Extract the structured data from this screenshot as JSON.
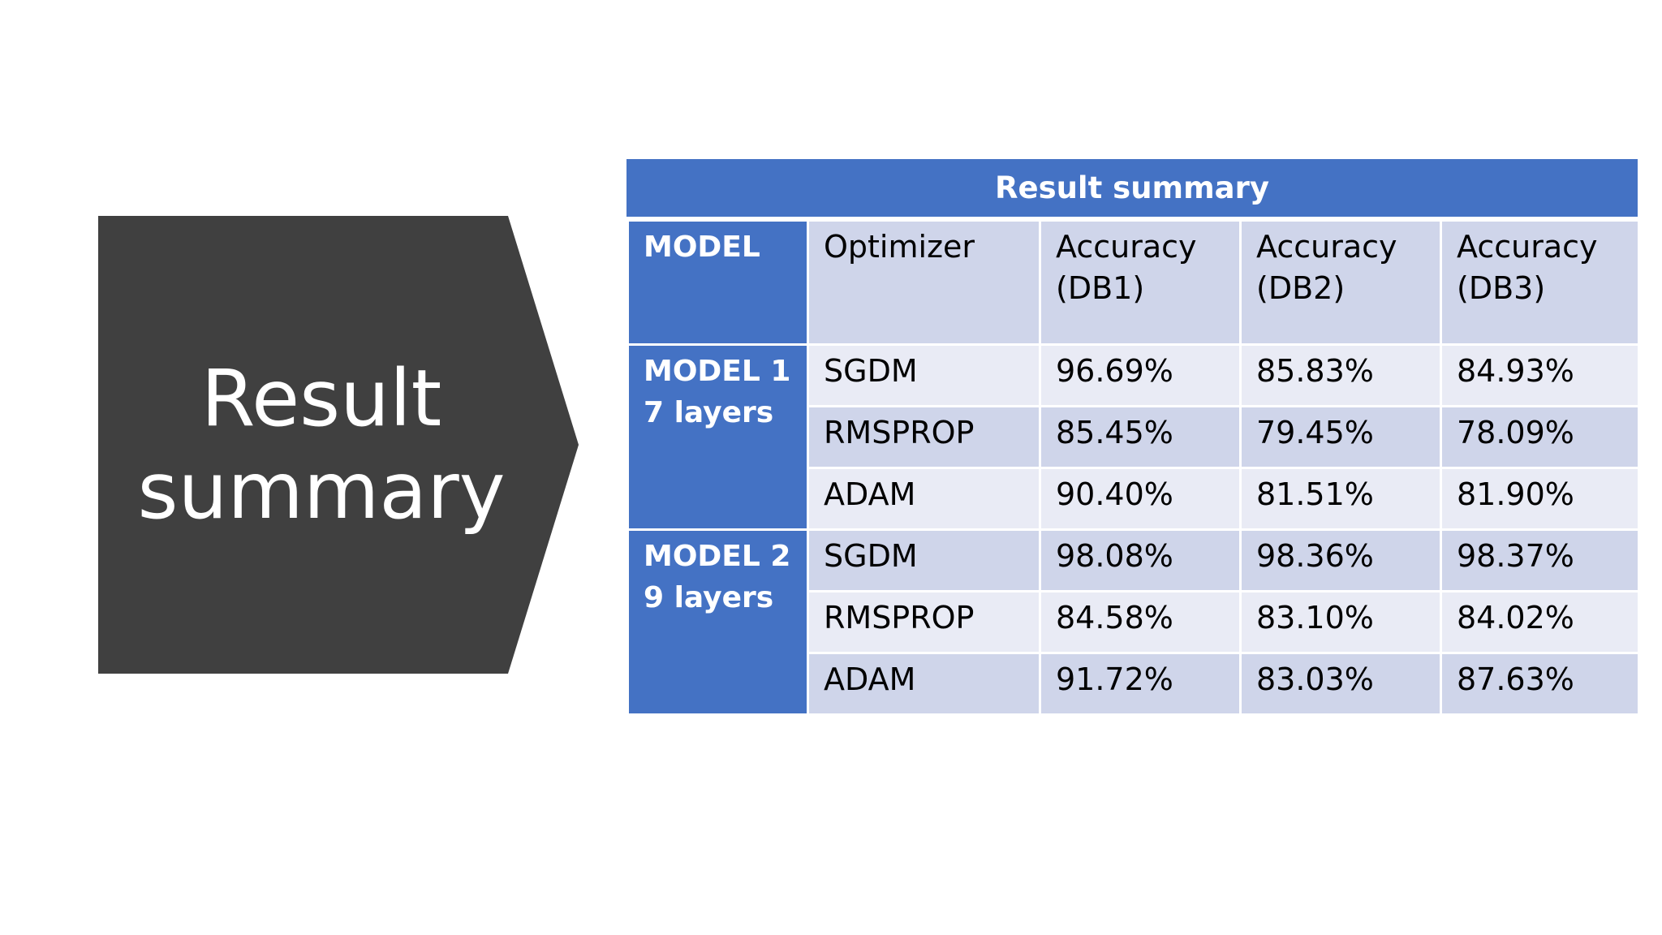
{
  "slide": {
    "title": "Result\nsummary"
  },
  "table": {
    "caption": "Result summary",
    "headers": {
      "model": "MODEL",
      "optimizer": "Optimizer",
      "db1_line1": "Accuracy",
      "db1_line2": "(DB1)",
      "db2_line1": "Accuracy",
      "db2_line2": "(DB2)",
      "db3_line1": "Accuracy",
      "db3_line2": "(DB3)"
    },
    "groups": [
      {
        "model_line1": "MODEL 1",
        "model_line2": "7 layers",
        "rows": [
          {
            "optimizer": "SGDM",
            "db1": "96.69%",
            "db2": "85.83%",
            "db3": "84.93%"
          },
          {
            "optimizer": "RMSPROP",
            "db1": "85.45%",
            "db2": "79.45%",
            "db3": "78.09%"
          },
          {
            "optimizer": "ADAM",
            "db1": "90.40%",
            "db2": "81.51%",
            "db3": "81.90%"
          }
        ]
      },
      {
        "model_line1": "MODEL 2",
        "model_line2": "9 layers",
        "rows": [
          {
            "optimizer": "SGDM",
            "db1": "98.08%",
            "db2": "98.36%",
            "db3": "98.37%"
          },
          {
            "optimizer": "RMSPROP",
            "db1": "84.58%",
            "db2": "83.10%",
            "db3": "84.02%"
          },
          {
            "optimizer": "ADAM",
            "db1": "91.72%",
            "db2": "83.03%",
            "db3": "87.63%"
          }
        ]
      }
    ]
  },
  "colors": {
    "chevron": "#404040",
    "header_blue": "#4472c4",
    "row_dark": "#cfd5ea",
    "row_light": "#e9ebf5"
  }
}
